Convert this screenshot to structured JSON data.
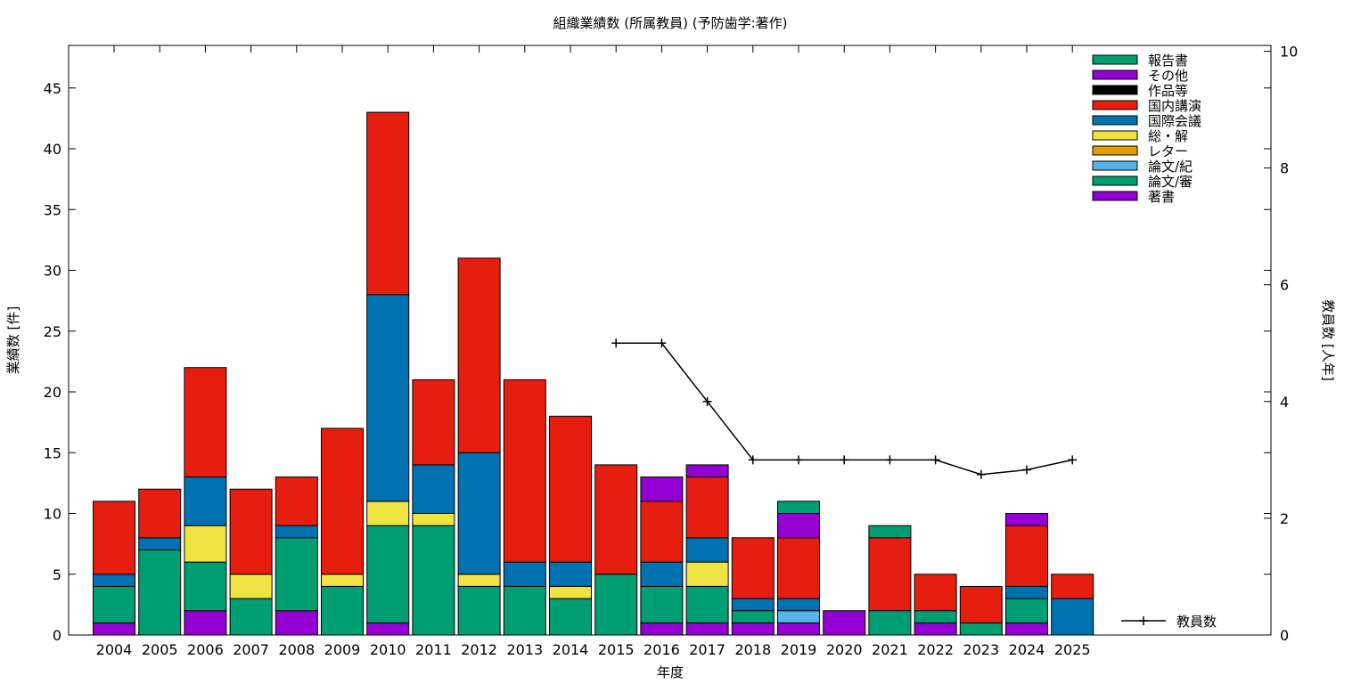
{
  "chart_data": {
    "type": "bar",
    "stacked": true,
    "title": "組織業績数 (所属教員) (予防歯学:著作)",
    "xlabel": "年度",
    "ylabel": "業績数 [件]",
    "y2label": "教員数 [人年]",
    "ylim": [
      0,
      48.5
    ],
    "y2lim": [
      0,
      10.1
    ],
    "yticks": [
      0,
      5,
      10,
      15,
      20,
      25,
      30,
      35,
      40,
      45
    ],
    "y2ticks": [
      0,
      2,
      4,
      6,
      8,
      10
    ],
    "legend_position": "top-right",
    "categories": [
      "2004",
      "2005",
      "2006",
      "2007",
      "2008",
      "2009",
      "2010",
      "2011",
      "2012",
      "2013",
      "2014",
      "2015",
      "2016",
      "2017",
      "2018",
      "2019",
      "2020",
      "2021",
      "2022",
      "2023",
      "2024",
      "2025"
    ],
    "series": [
      {
        "name": "著書",
        "color": "#9400d3",
        "values": [
          1,
          0,
          2,
          0,
          2,
          0,
          1,
          0,
          0,
          0,
          0,
          0,
          1,
          1,
          1,
          1,
          2,
          0,
          1,
          0,
          1,
          0
        ]
      },
      {
        "name": "論文/審",
        "color": "#009e73",
        "values": [
          3,
          7,
          4,
          3,
          6,
          4,
          8,
          9,
          4,
          4,
          3,
          5,
          3,
          3,
          1,
          0,
          0,
          2,
          1,
          1,
          2,
          0
        ]
      },
      {
        "name": "論文/紀",
        "color": "#56b4e9",
        "values": [
          0,
          0,
          0,
          0,
          0,
          0,
          0,
          0,
          0,
          0,
          0,
          0,
          0,
          0,
          0,
          1,
          0,
          0,
          0,
          0,
          0,
          0
        ]
      },
      {
        "name": "レター",
        "color": "#e69f00",
        "values": [
          0,
          0,
          0,
          0,
          0,
          0,
          0,
          0,
          0,
          0,
          0,
          0,
          0,
          0,
          0,
          0,
          0,
          0,
          0,
          0,
          0,
          0
        ]
      },
      {
        "name": "総・解",
        "color": "#f0e442",
        "values": [
          0,
          0,
          3,
          2,
          0,
          1,
          2,
          1,
          1,
          0,
          1,
          0,
          0,
          2,
          0,
          0,
          0,
          0,
          0,
          0,
          0,
          0
        ]
      },
      {
        "name": "国際会議",
        "color": "#0072b2",
        "values": [
          1,
          1,
          4,
          0,
          1,
          0,
          17,
          4,
          10,
          2,
          2,
          0,
          2,
          2,
          1,
          1,
          0,
          0,
          0,
          0,
          1,
          3
        ]
      },
      {
        "name": "国内講演",
        "color": "#e51e10",
        "values": [
          6,
          4,
          9,
          7,
          4,
          12,
          15,
          7,
          16,
          15,
          12,
          9,
          5,
          5,
          5,
          5,
          0,
          6,
          3,
          3,
          5,
          2
        ]
      },
      {
        "name": "作品等",
        "color": "#000000",
        "values": [
          0,
          0,
          0,
          0,
          0,
          0,
          0,
          0,
          0,
          0,
          0,
          0,
          0,
          0,
          0,
          0,
          0,
          0,
          0,
          0,
          0,
          0
        ]
      },
      {
        "name": "その他",
        "color": "#9400d3",
        "values": [
          0,
          0,
          0,
          0,
          0,
          0,
          0,
          0,
          0,
          0,
          0,
          0,
          2,
          1,
          0,
          2,
          0,
          0,
          0,
          0,
          1,
          0
        ]
      },
      {
        "name": "報告書",
        "color": "#009e73",
        "values": [
          0,
          0,
          0,
          0,
          0,
          0,
          0,
          0,
          0,
          0,
          0,
          0,
          0,
          0,
          0,
          1,
          0,
          1,
          0,
          0,
          0,
          0
        ]
      }
    ],
    "line_series": {
      "name": "教員数",
      "color": "#000000",
      "x": [
        "2015",
        "2016",
        "2017",
        "2018",
        "2019",
        "2020",
        "2021",
        "2022",
        "2023",
        "2024",
        "2025"
      ],
      "values": [
        5,
        5,
        4,
        3,
        3,
        3,
        3,
        3,
        2.75,
        2.83,
        3
      ]
    }
  }
}
